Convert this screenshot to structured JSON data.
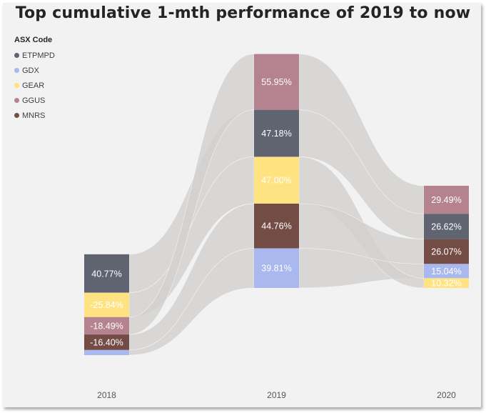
{
  "title": "Top cumulative 1-mth performance of 2019 to now",
  "legend": {
    "title": "ASX Code",
    "placement": "top-left",
    "items": [
      {
        "label": "ETPMPD",
        "color": "#5f6470"
      },
      {
        "label": "GDX",
        "color": "#a9b8ee"
      },
      {
        "label": "GEAR",
        "color": "#ffe282"
      },
      {
        "label": "GGUS",
        "color": "#b4838f"
      },
      {
        "label": "MNRS",
        "color": "#744c46"
      }
    ]
  },
  "chart_data": {
    "type": "ribbon",
    "title": "Top cumulative 1-mth performance of 2019 to now",
    "categories": [
      "2018",
      "2019",
      "2020"
    ],
    "flow_color": "#d2d1ce",
    "series": [
      {
        "name": "ETPMPD",
        "color": "#5f6470",
        "values": [
          40.77,
          47.18,
          26.62
        ],
        "labels": [
          "40.77%",
          "47.18%",
          "26.62%"
        ]
      },
      {
        "name": "GDX",
        "color": "#a9b8ee",
        "values": [
          -5.5,
          39.81,
          15.04
        ],
        "labels": [
          "",
          "39.81%",
          "15.04%"
        ]
      },
      {
        "name": "GEAR",
        "color": "#ffe282",
        "values": [
          -25.84,
          47.0,
          10.32
        ],
        "labels": [
          "-25.84%",
          "47.00%",
          "10.32%"
        ]
      },
      {
        "name": "GGUS",
        "color": "#b4838f",
        "values": [
          -18.49,
          55.95,
          29.49
        ],
        "labels": [
          "-18.49%",
          "55.95%",
          "29.49%"
        ]
      },
      {
        "name": "MNRS",
        "color": "#744c46",
        "values": [
          -16.4,
          44.76,
          26.07
        ],
        "labels": [
          "-16.40%",
          "44.76%",
          "26.07%"
        ]
      }
    ]
  }
}
